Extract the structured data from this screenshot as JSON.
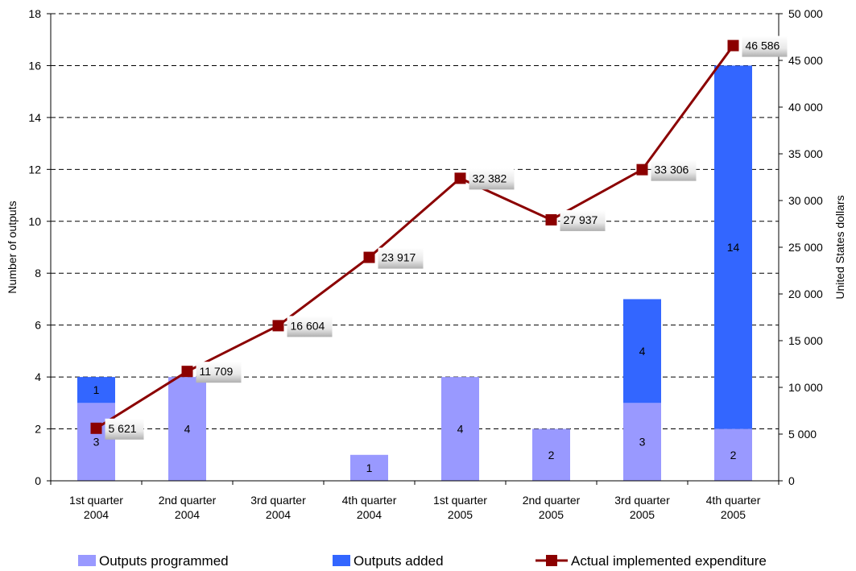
{
  "chart_data": {
    "type": "bar",
    "categories": [
      [
        "1st quarter",
        "2004"
      ],
      [
        "2nd quarter",
        "2004"
      ],
      [
        "3rd quarter",
        "2004"
      ],
      [
        "4th quarter",
        "2004"
      ],
      [
        "1st quarter",
        "2005"
      ],
      [
        "2nd quarter",
        "2005"
      ],
      [
        "3rd quarter",
        "2005"
      ],
      [
        "4th quarter",
        "2005"
      ]
    ],
    "ylabel": "Number of outputs",
    "ylim": [
      0,
      18
    ],
    "yticks": [
      "0",
      "2",
      "4",
      "6",
      "8",
      "10",
      "12",
      "14",
      "16",
      "18"
    ],
    "y2label": "United States dollars",
    "y2lim": [
      0,
      50000
    ],
    "y2ticks": [
      "0",
      "5 000",
      "10 000",
      "15 000",
      "20 000",
      "25 000",
      "30 000",
      "35 000",
      "40 000",
      "45 000",
      "50 000"
    ],
    "grid": "horizontal-dashed",
    "legend_position": "bottom",
    "series": [
      {
        "name": "Outputs programmed",
        "kind": "bar-stacked",
        "axis": "left",
        "color": "#9999ff",
        "values": [
          3,
          4,
          0,
          1,
          4,
          2,
          3,
          2
        ],
        "labels": [
          "3",
          "4",
          "",
          "1",
          "4",
          "2",
          "3",
          "2"
        ]
      },
      {
        "name": "Outputs added",
        "kind": "bar-stacked",
        "axis": "left",
        "color": "#3366ff",
        "values": [
          1,
          0,
          0,
          0,
          0,
          0,
          4,
          14
        ],
        "labels": [
          "1",
          "",
          "",
          "",
          "",
          "",
          "4",
          "14"
        ]
      },
      {
        "name": "Actual implemented expenditure",
        "kind": "line",
        "axis": "right",
        "color": "#8b0000",
        "values": [
          5621,
          11709,
          16604,
          23917,
          32382,
          27937,
          33306,
          46586
        ],
        "labels": [
          "5 621",
          "11 709",
          "16 604",
          "23 917",
          "32 382",
          "27 937",
          "33 306",
          "46 586"
        ]
      }
    ]
  }
}
